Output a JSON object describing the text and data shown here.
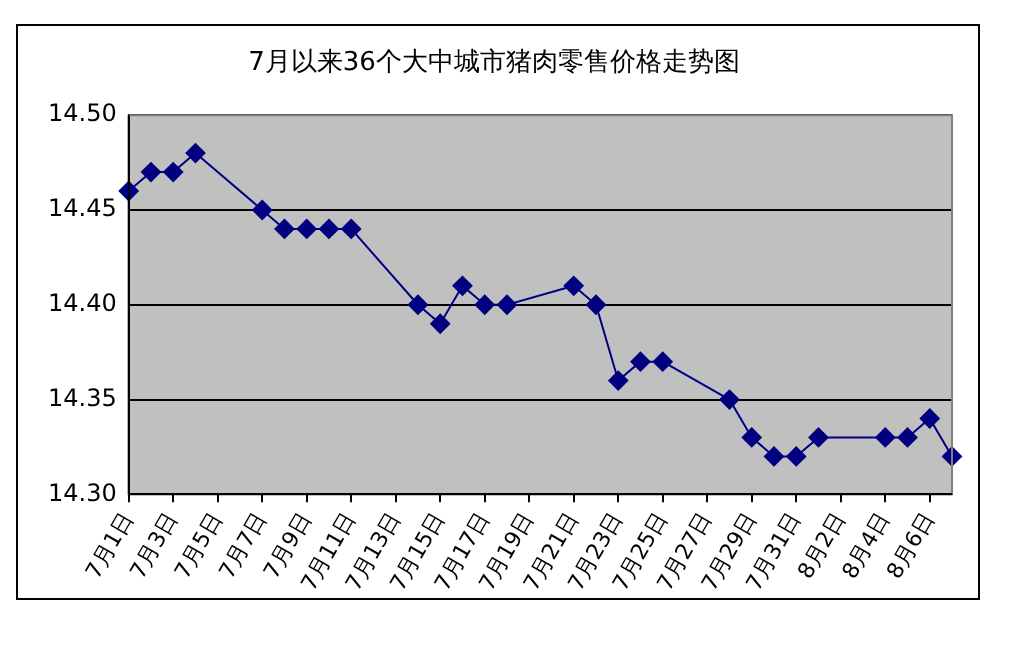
{
  "chart_data": {
    "type": "line",
    "title": "7月以来36个大中城市猪肉零售价格走势图",
    "categories": [
      "7月1日",
      null,
      "7月3日",
      null,
      "7月5日",
      null,
      "7月7日",
      null,
      "7月9日",
      null,
      "7月11日",
      null,
      "7月13日",
      null,
      "7月15日",
      null,
      "7月17日",
      null,
      "7月19日",
      null,
      "7月21日",
      null,
      "7月23日",
      null,
      "7月25日",
      null,
      "7月27日",
      null,
      "7月29日",
      null,
      "7月31日",
      null,
      "8月2日",
      null,
      "8月4日",
      null,
      "8月6日",
      null
    ],
    "series": [
      {
        "color": "#000080",
        "values": [
          14.46,
          14.47,
          14.47,
          14.48,
          null,
          null,
          14.45,
          14.44,
          14.44,
          14.44,
          14.44,
          null,
          null,
          14.4,
          14.39,
          14.41,
          14.4,
          14.4,
          null,
          null,
          14.41,
          14.4,
          14.36,
          14.37,
          14.37,
          null,
          null,
          14.35,
          14.33,
          14.32,
          14.32,
          14.33,
          null,
          null,
          14.33,
          14.33,
          14.34,
          14.32
        ]
      }
    ],
    "ylim": [
      14.3,
      14.5
    ],
    "yticks": [
      {
        "value": 14.3,
        "label": "14.30"
      },
      {
        "value": 14.35,
        "label": "14.35"
      },
      {
        "value": 14.4,
        "label": "14.40"
      },
      {
        "value": 14.45,
        "label": "14.45"
      },
      {
        "value": 14.5,
        "label": "14.50"
      }
    ],
    "grid": "y",
    "legend": false,
    "marker": "diamond",
    "line_style": "solid"
  }
}
